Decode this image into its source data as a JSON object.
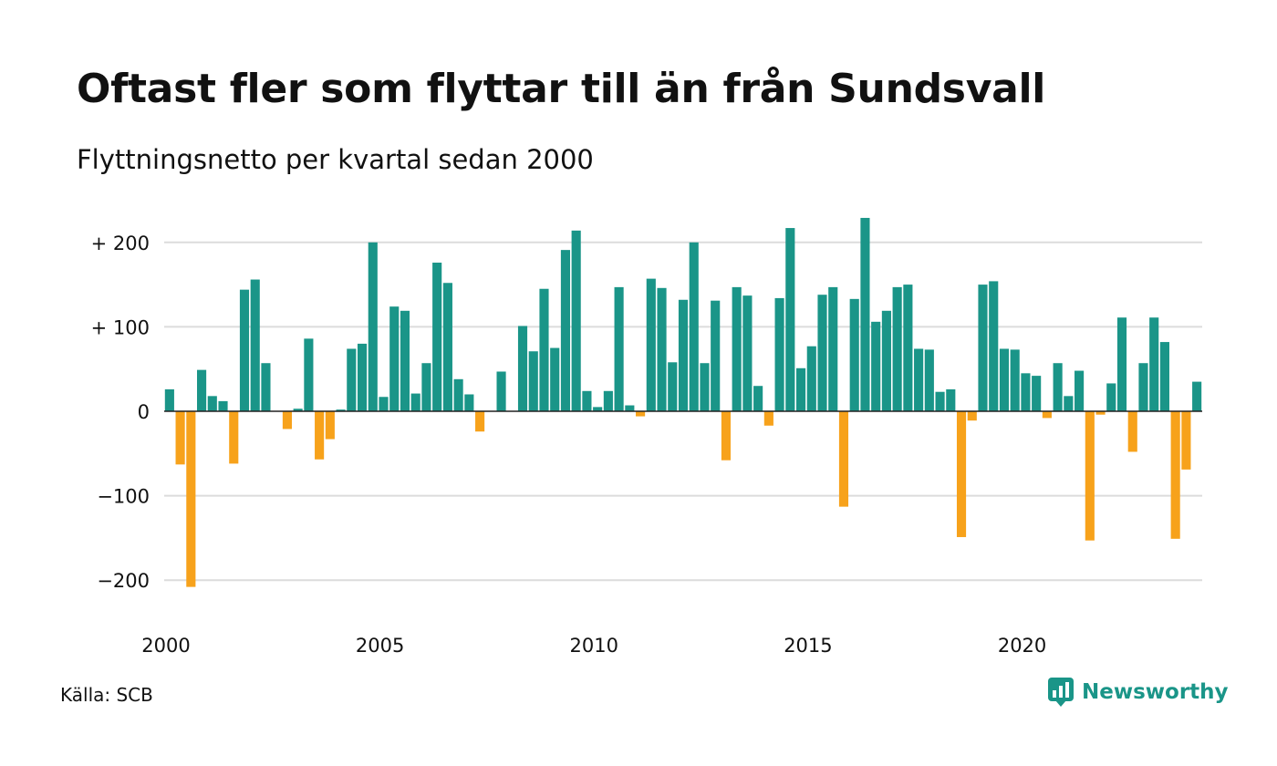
{
  "title": "Oftast fler som flyttar till än från Sundsvall",
  "subtitle": "Flyttningsnetto per kvartal sedan 2000",
  "source": "Källa: SCB",
  "brand": "Newsworthy",
  "colors": {
    "positive": "#1a9588",
    "negative": "#f7a21b",
    "grid": "#dcdcdc",
    "zero_line": "#222222"
  },
  "chart_data": {
    "type": "bar",
    "ylim": [
      -230,
      230
    ],
    "grid": true,
    "y_ticks": [
      {
        "value": 200,
        "label": "+ 200"
      },
      {
        "value": 100,
        "label": "+ 100"
      },
      {
        "value": 0,
        "label": "0"
      },
      {
        "value": -100,
        "label": "−100"
      },
      {
        "value": -200,
        "label": "−200"
      }
    ],
    "x_ticks": [
      {
        "index": 0,
        "label": "2000"
      },
      {
        "index": 20,
        "label": "2005"
      },
      {
        "index": 40,
        "label": "2010"
      },
      {
        "index": 60,
        "label": "2015"
      },
      {
        "index": 80,
        "label": "2020"
      }
    ],
    "start": "2000 Q1",
    "period": "quarter",
    "values": [
      26,
      -63,
      -208,
      49,
      18,
      12,
      -62,
      144,
      156,
      57,
      0,
      -21,
      3,
      86,
      -57,
      -33,
      2,
      74,
      80,
      200,
      17,
      124,
      119,
      21,
      57,
      176,
      152,
      38,
      20,
      -24,
      0,
      47,
      0,
      101,
      71,
      145,
      75,
      191,
      214,
      24,
      5,
      24,
      147,
      7,
      -6,
      157,
      146,
      58,
      132,
      200,
      57,
      131,
      -58,
      147,
      137,
      30,
      -17,
      134,
      217,
      51,
      77,
      138,
      147,
      -113,
      133,
      229,
      106,
      119,
      147,
      150,
      74,
      73,
      23,
      26,
      -149,
      -11,
      150,
      154,
      74,
      73,
      45,
      42,
      -8,
      57,
      18,
      48,
      -153,
      -4,
      33,
      111,
      -48,
      57,
      111,
      82,
      -151,
      -69,
      35
    ]
  }
}
